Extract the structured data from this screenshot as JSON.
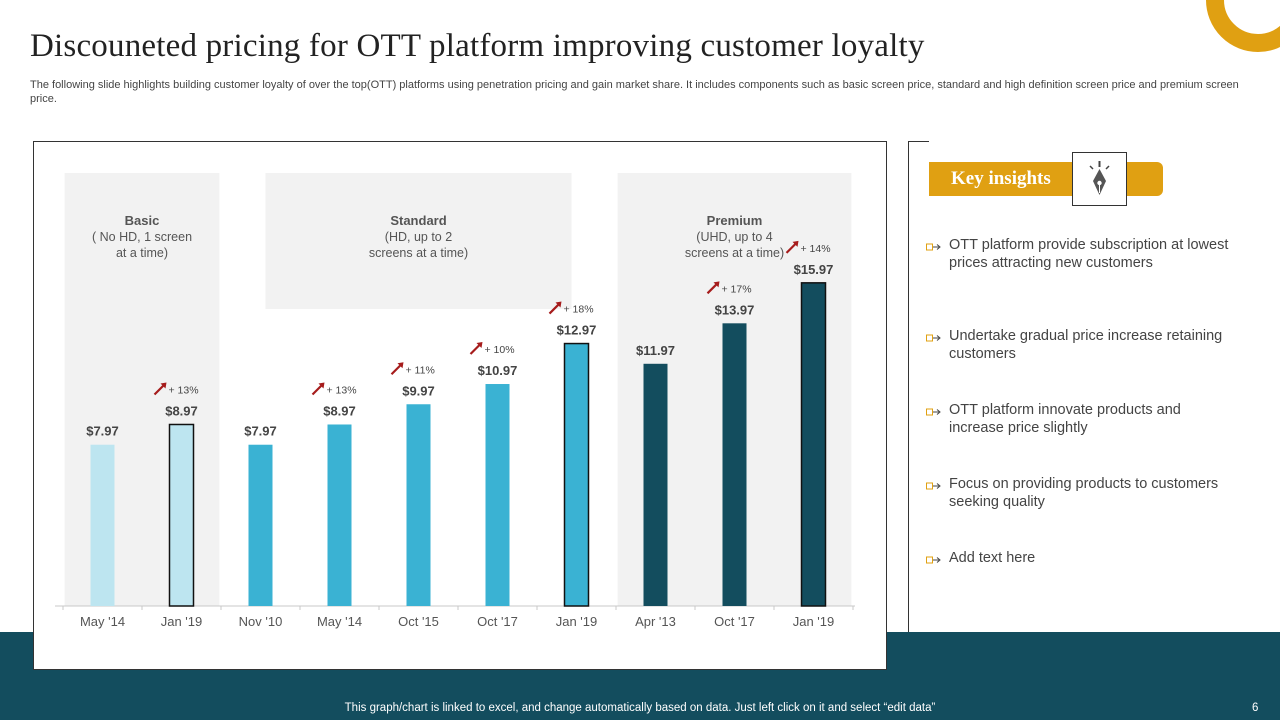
{
  "title": "Discouneted pricing for OTT platform improving customer loyalty",
  "subtitle": "The following slide highlights building customer loyalty of over the top(OTT) platforms using penetration pricing and gain market share. It includes components such as basic screen price, standard and high definition screen price and premium screen price.",
  "footer_note": "This graph/chart is linked to excel,  and change automatically based on data. Just left click on it and select “edit data”",
  "page_number": "6",
  "colors": {
    "accent": "#e0a012",
    "band": "#134d5e",
    "basic": "#bde5f0",
    "standard": "#3ab2d3",
    "premium": "#134d5e",
    "group_bg": "#f2f2f2",
    "growth_arrow": "#a61c1c"
  },
  "chart_data": {
    "type": "bar",
    "categories": [
      "May '14",
      "Jan '19",
      "Nov '10",
      "May '14",
      "Oct '15",
      "Oct '17",
      "Jan '19",
      "Apr '13",
      "Oct '17",
      "Jan '19"
    ],
    "values": [
      7.97,
      8.97,
      7.97,
      8.97,
      9.97,
      10.97,
      12.97,
      11.97,
      13.97,
      15.97
    ],
    "value_labels": [
      "$7.97",
      "$8.97",
      "$7.97",
      "$8.97",
      "$9.97",
      "$10.97",
      "$12.97",
      "$11.97",
      "$13.97",
      "$15.97"
    ],
    "tiers": [
      "basic",
      "basic",
      "standard",
      "standard",
      "standard",
      "standard",
      "standard",
      "premium",
      "premium",
      "premium"
    ],
    "growth_labels": [
      "",
      "+ 13%",
      "",
      "+ 13%",
      "+ 11%",
      "+ 10%",
      "+ 18%",
      "",
      "+ 17%",
      "+ 14%"
    ],
    "highlighted": [
      false,
      true,
      false,
      false,
      false,
      false,
      true,
      false,
      false,
      true
    ],
    "groups": [
      {
        "key": "basic",
        "name": "Basic",
        "desc_lines": [
          "( No HD, 1 screen",
          "at a time)"
        ]
      },
      {
        "key": "standard",
        "name": "Standard",
        "desc_lines": [
          "(HD, up to 2",
          "screens at a time)"
        ]
      },
      {
        "key": "premium",
        "name": "Premium",
        "desc_lines": [
          "(UHD,  up to 4",
          "screens at a time)"
        ]
      }
    ],
    "ylim": [
      0,
      17
    ]
  },
  "key_insights": {
    "title": "Key insights",
    "icon": "pen-nib-icon",
    "items": [
      "OTT platform provide subscription at lowest prices attracting new customers",
      "Undertake gradual price increase retaining customers",
      "OTT platform innovate products and increase price slightly",
      "Focus on providing products to customers seeking quality",
      "Add text here"
    ]
  }
}
